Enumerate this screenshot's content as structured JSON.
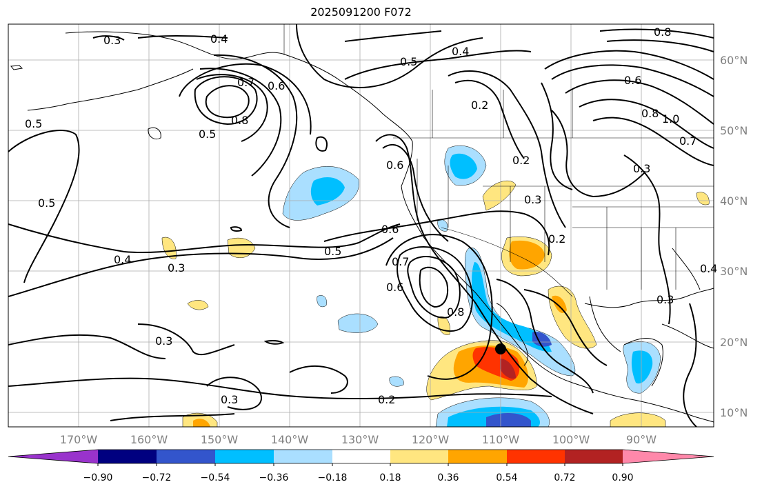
{
  "title": "2025091200 F072",
  "lat_labels": [
    "60°N",
    "50°N",
    "40°N",
    "30°N",
    "20°N",
    "10°N"
  ],
  "lon_labels": [
    "170°W",
    "160°W",
    "150°W",
    "140°W",
    "130°W",
    "120°W",
    "110°W",
    "100°W",
    "90°W"
  ],
  "colorbar": {
    "tick_labels": [
      "−0.90",
      "−0.72",
      "−0.54",
      "−0.36",
      "−0.18",
      "0.18",
      "0.36",
      "0.54",
      "0.72",
      "0.90"
    ],
    "colors": [
      "#9933cc",
      "#000080",
      "#3355cc",
      "#00bfff",
      "#aadfff",
      "#ffffff",
      "#ffe680",
      "#ffa500",
      "#ff3300",
      "#b22222",
      "#ff88aa"
    ]
  },
  "contour_labels": [
    "0.3",
    "0.4",
    "0.5",
    "0.7",
    "0.6",
    "0.8",
    "0.5",
    "0.5",
    "0.6",
    "0.4",
    "0.5",
    "0.3",
    "0.4",
    "0.5",
    "0.6",
    "0.7",
    "0.6",
    "0.8",
    "0.2",
    "0.3",
    "0.2",
    "0.3",
    "0.2",
    "0.3",
    "0.8",
    "0.6",
    "0.8",
    "1.0",
    "0.7",
    "0.3",
    "0.2",
    "0.4",
    "0.3"
  ],
  "marker": {
    "name": "storm-center",
    "lon": -110,
    "lat": 19
  }
}
